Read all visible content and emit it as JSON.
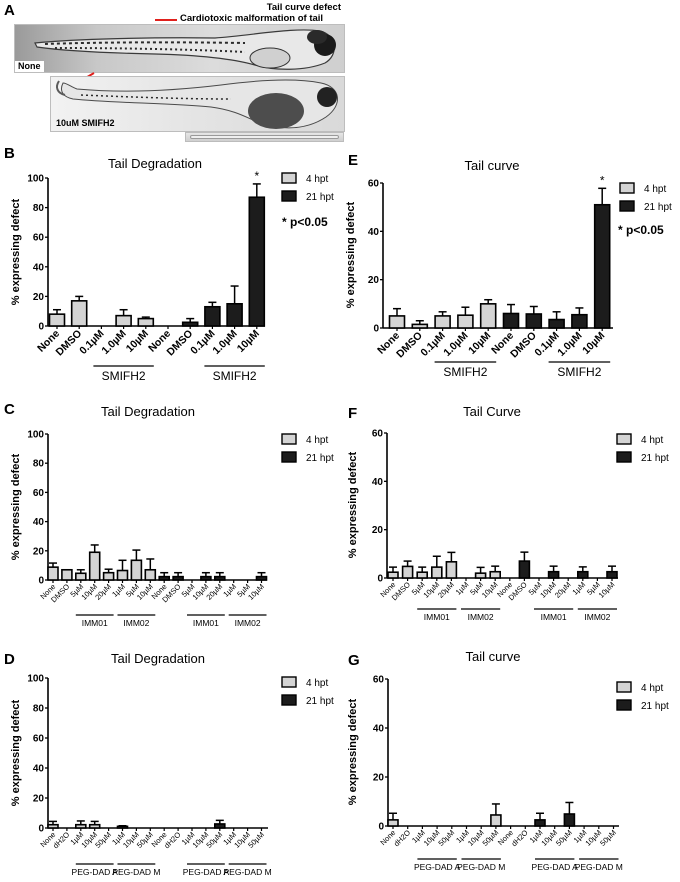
{
  "panel_a": {
    "letter": "A",
    "legend_title": "Tail curve defect",
    "legend_item": "Cardiotoxic malformation of tail",
    "legend_color": "#e0201c",
    "image_top_label": "None",
    "image_bottom_label": "10uM SMIFH2",
    "arrow_color": "#e0201c"
  },
  "chart_data": [
    {
      "id": "B",
      "letter": "B",
      "type": "bar",
      "title": "Tail Degradation",
      "ylabel": "% expressing defect",
      "xlabel": "",
      "ylim": [
        0,
        100
      ],
      "yticks": [
        0,
        20,
        40,
        60,
        80,
        100
      ],
      "categories": [
        "None",
        "DMSO",
        "0.1µM",
        "1.0µM",
        "10µM",
        "None",
        "DMSO",
        "0.1µM",
        "1.0µM",
        "10µM"
      ],
      "series": [
        {
          "name": "4 hpt",
          "color": "#d4d4d4",
          "indices": [
            0,
            1,
            2,
            3,
            4
          ],
          "values": [
            8,
            17,
            0,
            7,
            5
          ],
          "errors": [
            11,
            20,
            0,
            11,
            6
          ]
        },
        {
          "name": "21 hpt",
          "color": "#1c1c1c",
          "indices": [
            5,
            6,
            7,
            8,
            9
          ],
          "values": [
            0,
            2.5,
            13,
            15,
            87
          ],
          "errors": [
            0,
            5,
            16,
            27,
            96
          ]
        }
      ],
      "groups": [
        {
          "label": "SMIFH2",
          "from": 2,
          "to": 4
        },
        {
          "label": "SMIFH2",
          "from": 7,
          "to": 9
        }
      ],
      "annotations": [
        {
          "index": 9,
          "text": "*"
        }
      ],
      "significance_note": "* p<0.05",
      "legend": [
        "4 hpt",
        "21 hpt"
      ],
      "legend_position": "top-right",
      "grid": false
    },
    {
      "id": "E",
      "letter": "E",
      "type": "bar",
      "title": "Tail curve",
      "ylabel": "% expressing defect",
      "xlabel": "",
      "ylim": [
        0,
        60
      ],
      "yticks": [
        0,
        20,
        40,
        60
      ],
      "categories": [
        "None",
        "DMSO",
        "0.1µM",
        "1.0µM",
        "10µM",
        "None",
        "DMSO",
        "0.1µM",
        "1.0µM",
        "10µM"
      ],
      "series": [
        {
          "name": "4 hpt",
          "color": "#d4d4d4",
          "indices": [
            0,
            1,
            2,
            3,
            4
          ],
          "values": [
            5,
            1.5,
            5,
            5.3,
            10
          ],
          "errors": [
            8,
            3,
            6.7,
            8.6,
            11.7
          ]
        },
        {
          "name": "21 hpt",
          "color": "#1c1c1c",
          "indices": [
            5,
            6,
            7,
            8,
            9
          ],
          "values": [
            6,
            5.8,
            3.5,
            5.5,
            51
          ],
          "errors": [
            9.7,
            8.9,
            6.7,
            8.3,
            57.8
          ]
        }
      ],
      "groups": [
        {
          "label": "SMIFH2",
          "from": 2,
          "to": 4
        },
        {
          "label": "SMIFH2",
          "from": 7,
          "to": 9
        }
      ],
      "annotations": [
        {
          "index": 9,
          "text": "*"
        }
      ],
      "significance_note": "* p<0.05",
      "legend": [
        "4 hpt",
        "21 hpt"
      ],
      "legend_position": "top-right",
      "grid": false
    },
    {
      "id": "C",
      "letter": "C",
      "type": "bar",
      "title": "Tail Degradation",
      "ylabel": "% expressing defect",
      "xlabel": "",
      "ylim": [
        0,
        100
      ],
      "yticks": [
        0,
        20,
        40,
        60,
        80,
        100
      ],
      "categories": [
        "None",
        "DMSO",
        "5µM",
        "10µM",
        "20µM",
        "1µM",
        "5µM",
        "10µM",
        "None",
        "DMSO",
        "5µM",
        "10µM",
        "20µM",
        "1µM",
        "5µM",
        "10µM"
      ],
      "series": [
        {
          "name": "4 hpt",
          "color": "#d4d4d4",
          "indices": [
            0,
            1,
            2,
            3,
            4,
            5,
            6,
            7
          ],
          "values": [
            8.8,
            7,
            4.6,
            19,
            5,
            6.5,
            13.5,
            7
          ],
          "errors": [
            11.6,
            7,
            7,
            24,
            7.4,
            13.5,
            20.5,
            14.4
          ]
        },
        {
          "name": "21 hpt",
          "color": "#1c1c1c",
          "indices": [
            8,
            9,
            10,
            11,
            12,
            13,
            14,
            15
          ],
          "values": [
            2.3,
            2.3,
            0,
            2.3,
            2.3,
            0,
            0,
            2.3
          ],
          "errors": [
            5,
            5,
            0,
            5,
            5,
            0,
            0,
            5
          ]
        }
      ],
      "groups": [
        {
          "label": "IMM01",
          "from": 2,
          "to": 4
        },
        {
          "label": "IMM02",
          "from": 5,
          "to": 7
        },
        {
          "label": "IMM01",
          "from": 10,
          "to": 12
        },
        {
          "label": "IMM02",
          "from": 13,
          "to": 15
        }
      ],
      "annotations": [],
      "significance_note": "",
      "legend": [
        "4 hpt",
        "21 hpt"
      ],
      "legend_position": "top-right",
      "grid": false
    },
    {
      "id": "F",
      "letter": "F",
      "type": "bar",
      "title": "Tail Curve",
      "ylabel": "% expressing defect",
      "xlabel": "",
      "ylim": [
        0,
        60
      ],
      "yticks": [
        0,
        20,
        40,
        60
      ],
      "categories": [
        "None",
        "DMSO",
        "5µM",
        "10µM",
        "20µM",
        "1µM",
        "5µM",
        "10µM",
        "None",
        "DMSO",
        "5µM",
        "10µM",
        "20µM",
        "1µM",
        "5µM",
        "10µM"
      ],
      "series": [
        {
          "name": "4 hpt",
          "color": "#d4d4d4",
          "indices": [
            0,
            1,
            2,
            3,
            4,
            5,
            6,
            7
          ],
          "values": [
            2.4,
            4.8,
            2.4,
            4.5,
            6.7,
            0,
            2,
            2.6
          ],
          "errors": [
            4.5,
            7,
            4.5,
            9,
            10.6,
            0,
            4.4,
            4.9
          ]
        },
        {
          "name": "21 hpt",
          "color": "#1c1c1c",
          "indices": [
            8,
            9,
            10,
            11,
            12,
            13,
            14,
            15
          ],
          "values": [
            0,
            7,
            0,
            2.6,
            0,
            2.6,
            0,
            2.6
          ],
          "errors": [
            0,
            10.7,
            0,
            4.9,
            0,
            4.6,
            0,
            4.9
          ]
        }
      ],
      "groups": [
        {
          "label": "IMM01",
          "from": 2,
          "to": 4
        },
        {
          "label": "IMM02",
          "from": 5,
          "to": 7
        },
        {
          "label": "IMM01",
          "from": 10,
          "to": 12
        },
        {
          "label": "IMM02",
          "from": 13,
          "to": 15
        }
      ],
      "annotations": [],
      "significance_note": "",
      "legend": [
        "4 hpt",
        "21 hpt"
      ],
      "legend_position": "top-right",
      "grid": false
    },
    {
      "id": "D",
      "letter": "D",
      "type": "bar",
      "title": "Tail Degradation",
      "ylabel": "% expressing defect",
      "xlabel": "",
      "ylim": [
        0,
        100
      ],
      "yticks": [
        0,
        20,
        40,
        60,
        80,
        100
      ],
      "categories": [
        "None",
        "dH2O",
        "1µM",
        "10µM",
        "50µM",
        "1µM",
        "10µM",
        "50µM",
        "None",
        "dH2O",
        "1µM",
        "10µM",
        "50µM",
        "1µM",
        "10µM",
        "50µM"
      ],
      "series": [
        {
          "name": "4 hpt",
          "color": "#d4d4d4",
          "indices": [
            0,
            1,
            2,
            3,
            4,
            5,
            6,
            7
          ],
          "values": [
            2.2,
            0,
            2.2,
            2.2,
            0,
            1.1,
            0,
            0
          ],
          "errors": [
            4.4,
            0,
            4.7,
            4.4,
            0,
            1.5,
            0,
            0
          ]
        },
        {
          "name": "21 hpt",
          "color": "#1c1c1c",
          "indices": [
            8,
            9,
            10,
            11,
            12,
            13,
            14,
            15
          ],
          "values": [
            0,
            0,
            0,
            0,
            2.7,
            0,
            0,
            0
          ],
          "errors": [
            0,
            0,
            0,
            0,
            5.1,
            0,
            0,
            0
          ]
        }
      ],
      "groups": [
        {
          "label": "PEG-DAD A",
          "from": 2,
          "to": 4
        },
        {
          "label": "PEG-DAD M",
          "from": 5,
          "to": 7
        },
        {
          "label": "PEG-DAD A",
          "from": 10,
          "to": 12
        },
        {
          "label": "PEG-DAD M",
          "from": 13,
          "to": 15
        }
      ],
      "annotations": [],
      "significance_note": "",
      "legend": [
        "4 hpt",
        "21 hpt"
      ],
      "legend_position": "top-right",
      "grid": false
    },
    {
      "id": "G",
      "letter": "G",
      "type": "bar",
      "title": "Tail curve",
      "ylabel": "% expressing defect",
      "xlabel": "",
      "ylim": [
        0,
        60
      ],
      "yticks": [
        0,
        20,
        40,
        60
      ],
      "categories": [
        "None",
        "dH2O",
        "1µM",
        "10µM",
        "50µM",
        "1µM",
        "10µM",
        "50µM",
        "None",
        "dH2O",
        "1µM",
        "10µM",
        "50µM",
        "1µM",
        "10µM",
        "50µM"
      ],
      "series": [
        {
          "name": "4 hpt",
          "color": "#d4d4d4",
          "indices": [
            0,
            1,
            2,
            3,
            4,
            5,
            6,
            7
          ],
          "values": [
            2.5,
            0,
            0,
            0,
            0,
            0,
            0,
            4.5
          ],
          "errors": [
            5.2,
            0,
            0,
            0,
            0,
            0,
            0,
            9
          ]
        },
        {
          "name": "21 hpt",
          "color": "#1c1c1c",
          "indices": [
            8,
            9,
            10,
            11,
            12,
            13,
            14,
            15
          ],
          "values": [
            0,
            0,
            2.5,
            0,
            4.9,
            0,
            0,
            0
          ],
          "errors": [
            0,
            0,
            5.2,
            0,
            9.6,
            0,
            0,
            0
          ]
        }
      ],
      "groups": [
        {
          "label": "PEG-DAD A",
          "from": 2,
          "to": 4
        },
        {
          "label": "PEG-DAD M",
          "from": 5,
          "to": 7
        },
        {
          "label": "PEG-DAD A",
          "from": 10,
          "to": 12
        },
        {
          "label": "PEG-DAD M",
          "from": 13,
          "to": 15
        }
      ],
      "annotations": [],
      "significance_note": "",
      "legend": [
        "4 hpt",
        "21 hpt"
      ],
      "legend_position": "top-right",
      "grid": false
    }
  ]
}
